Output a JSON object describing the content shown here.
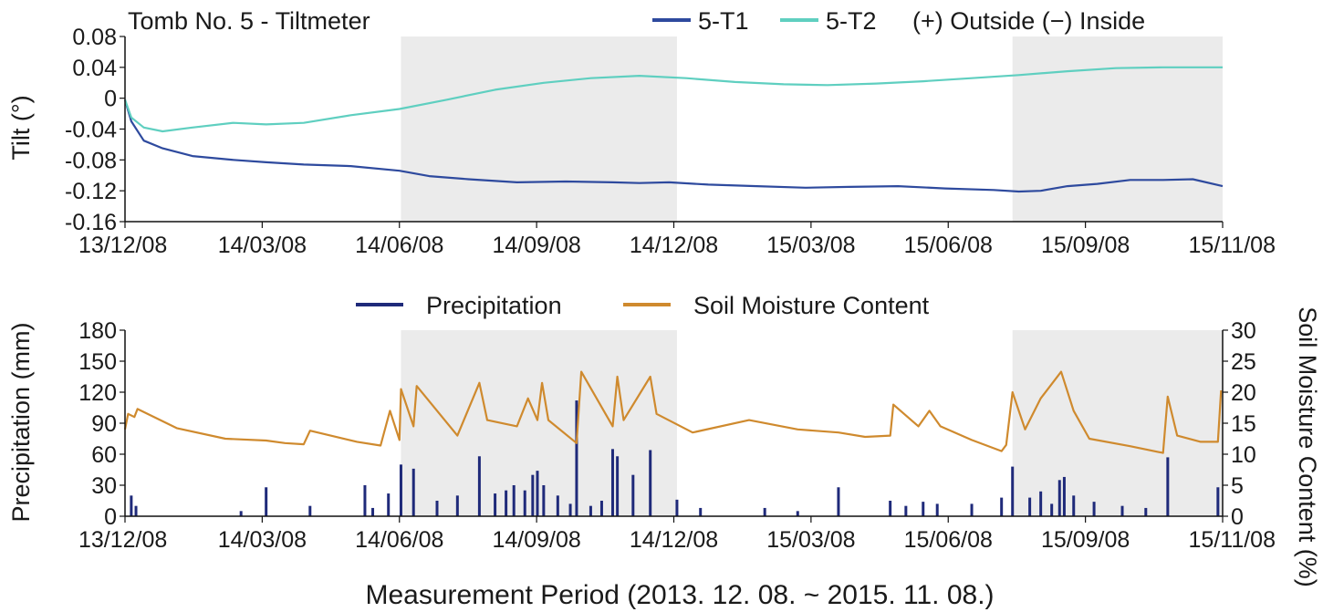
{
  "chart_data": [
    {
      "type": "line",
      "title": "Tomb  No.  5  -  Tiltmeter",
      "legend_note": "(+)  Outside  (−)  Inside",
      "ylabel": "Tilt (°)",
      "xlabel": "",
      "ylim": [
        -0.16,
        0.08
      ],
      "yticks": [
        "0.08",
        "0.04",
        "0",
        "-0.04",
        "-0.08",
        "-0.12",
        "-0.16"
      ],
      "xticks": [
        "13/12/08",
        "14/03/08",
        "14/06/08",
        "14/09/08",
        "14/12/08",
        "15/03/08",
        "15/06/08",
        "15/09/08",
        "15/11/08"
      ],
      "xrange": [
        "2013-12-08",
        "2015-11-08"
      ],
      "legend_placement": "top-right",
      "grid": false,
      "shaded_periods": [
        [
          "2014-06-02",
          "2014-11-25"
        ],
        [
          "2015-06-27",
          "2015-11-08"
        ]
      ],
      "series": [
        {
          "name": "5-T1",
          "color": "#2e4a9e",
          "points": [
            [
              "2013-12-08",
              -0.002
            ],
            [
              "2013-12-12",
              -0.03
            ],
            [
              "2013-12-20",
              -0.055
            ],
            [
              "2014-01-01",
              -0.065
            ],
            [
              "2014-01-20",
              -0.075
            ],
            [
              "2014-02-15",
              -0.08
            ],
            [
              "2014-03-08",
              -0.083
            ],
            [
              "2014-04-01",
              -0.086
            ],
            [
              "2014-05-01",
              -0.088
            ],
            [
              "2014-06-01",
              -0.094
            ],
            [
              "2014-06-20",
              -0.101
            ],
            [
              "2014-07-15",
              -0.105
            ],
            [
              "2014-08-15",
              -0.109
            ],
            [
              "2014-09-15",
              -0.108
            ],
            [
              "2014-10-15",
              -0.109
            ],
            [
              "2014-11-01",
              -0.11
            ],
            [
              "2014-11-20",
              -0.109
            ],
            [
              "2014-12-15",
              -0.112
            ],
            [
              "2015-01-15",
              -0.114
            ],
            [
              "2015-02-15",
              -0.116
            ],
            [
              "2015-03-15",
              -0.115
            ],
            [
              "2015-04-15",
              -0.114
            ],
            [
              "2015-05-15",
              -0.117
            ],
            [
              "2015-06-15",
              -0.119
            ],
            [
              "2015-07-01",
              -0.121
            ],
            [
              "2015-07-15",
              -0.12
            ],
            [
              "2015-08-01",
              -0.114
            ],
            [
              "2015-08-20",
              -0.111
            ],
            [
              "2015-09-10",
              -0.106
            ],
            [
              "2015-10-01",
              -0.106
            ],
            [
              "2015-10-20",
              -0.105
            ],
            [
              "2015-11-08",
              -0.114
            ]
          ]
        },
        {
          "name": "5-T2",
          "color": "#5fcfc0",
          "points": [
            [
              "2013-12-08",
              -0.002
            ],
            [
              "2013-12-12",
              -0.025
            ],
            [
              "2013-12-20",
              -0.038
            ],
            [
              "2014-01-01",
              -0.043
            ],
            [
              "2014-01-20",
              -0.038
            ],
            [
              "2014-02-15",
              -0.032
            ],
            [
              "2014-03-08",
              -0.034
            ],
            [
              "2014-04-01",
              -0.032
            ],
            [
              "2014-05-01",
              -0.022
            ],
            [
              "2014-06-01",
              -0.014
            ],
            [
              "2014-07-01",
              -0.002
            ],
            [
              "2014-08-01",
              0.011
            ],
            [
              "2014-09-01",
              0.02
            ],
            [
              "2014-10-01",
              0.026
            ],
            [
              "2014-11-01",
              0.029
            ],
            [
              "2014-12-01",
              0.026
            ],
            [
              "2015-01-01",
              0.021
            ],
            [
              "2015-02-01",
              0.018
            ],
            [
              "2015-03-01",
              0.017
            ],
            [
              "2015-04-01",
              0.019
            ],
            [
              "2015-05-01",
              0.022
            ],
            [
              "2015-06-01",
              0.026
            ],
            [
              "2015-07-01",
              0.03
            ],
            [
              "2015-08-01",
              0.035
            ],
            [
              "2015-09-01",
              0.039
            ],
            [
              "2015-10-01",
              0.04
            ],
            [
              "2015-11-08",
              0.04
            ]
          ]
        }
      ]
    },
    {
      "type": "bar+line",
      "title": "",
      "xlabel": "Measurement  Period (2013.  12.  08.  ~  2015.  11.  08.)",
      "ylabel": "Precipitation (mm)",
      "y2label": "Soil Moisture Content (%)",
      "ylim": [
        0,
        180
      ],
      "y2lim": [
        0,
        30
      ],
      "yticks": [
        "180",
        "150",
        "120",
        "90",
        "60",
        "30",
        "0"
      ],
      "y2ticks": [
        "30",
        "25",
        "20",
        "15",
        "10",
        "5",
        "0"
      ],
      "xticks": [
        "13/12/08",
        "14/03/08",
        "14/06/08",
        "14/09/08",
        "14/12/08",
        "15/03/08",
        "15/06/08",
        "15/09/08",
        "15/11/08"
      ],
      "xrange": [
        "2013-12-08",
        "2015-11-08"
      ],
      "legend_placement": "top-center",
      "grid": false,
      "shaded_periods": [
        [
          "2014-06-02",
          "2014-11-25"
        ],
        [
          "2015-06-27",
          "2015-11-08"
        ]
      ],
      "series": [
        {
          "name": "Precipitation",
          "color": "#1f2a7a",
          "kind": "bar",
          "axis": "left",
          "points": [
            [
              "2013-12-12",
              20
            ],
            [
              "2013-12-15",
              10
            ],
            [
              "2014-02-20",
              5
            ],
            [
              "2014-03-08",
              28
            ],
            [
              "2014-04-05",
              10
            ],
            [
              "2014-05-10",
              30
            ],
            [
              "2014-05-15",
              8
            ],
            [
              "2014-05-25",
              22
            ],
            [
              "2014-06-02",
              50
            ],
            [
              "2014-06-10",
              46
            ],
            [
              "2014-06-25",
              15
            ],
            [
              "2014-07-08",
              20
            ],
            [
              "2014-07-22",
              58
            ],
            [
              "2014-08-01",
              22
            ],
            [
              "2014-08-08",
              25
            ],
            [
              "2014-08-13",
              30
            ],
            [
              "2014-08-20",
              25
            ],
            [
              "2014-08-25",
              40
            ],
            [
              "2014-08-28",
              44
            ],
            [
              "2014-09-01",
              30
            ],
            [
              "2014-09-10",
              20
            ],
            [
              "2014-09-18",
              12
            ],
            [
              "2014-09-22",
              112
            ],
            [
              "2014-10-01",
              10
            ],
            [
              "2014-10-08",
              15
            ],
            [
              "2014-10-15",
              65
            ],
            [
              "2014-10-18",
              58
            ],
            [
              "2014-10-28",
              40
            ],
            [
              "2014-11-08",
              64
            ],
            [
              "2014-11-25",
              16
            ],
            [
              "2014-12-10",
              8
            ],
            [
              "2015-01-20",
              8
            ],
            [
              "2015-02-10",
              5
            ],
            [
              "2015-03-08",
              28
            ],
            [
              "2015-04-10",
              15
            ],
            [
              "2015-04-20",
              10
            ],
            [
              "2015-05-01",
              14
            ],
            [
              "2015-05-10",
              12
            ],
            [
              "2015-06-01",
              12
            ],
            [
              "2015-06-20",
              18
            ],
            [
              "2015-06-27",
              48
            ],
            [
              "2015-07-08",
              18
            ],
            [
              "2015-07-15",
              24
            ],
            [
              "2015-07-22",
              12
            ],
            [
              "2015-07-27",
              35
            ],
            [
              "2015-07-30",
              38
            ],
            [
              "2015-08-05",
              20
            ],
            [
              "2015-08-18",
              14
            ],
            [
              "2015-09-05",
              10
            ],
            [
              "2015-09-20",
              8
            ],
            [
              "2015-10-04",
              57
            ],
            [
              "2015-11-05",
              28
            ]
          ]
        },
        {
          "name": "Soil Moisture Content",
          "color": "#cf8a2e",
          "kind": "line",
          "axis": "right",
          "points": [
            [
              "2013-12-08",
              14
            ],
            [
              "2013-12-10",
              16.5
            ],
            [
              "2013-12-14",
              16
            ],
            [
              "2013-12-16",
              17.3
            ],
            [
              "2014-01-10",
              14.2
            ],
            [
              "2014-02-10",
              12.5
            ],
            [
              "2014-03-08",
              12.2
            ],
            [
              "2014-03-20",
              11.8
            ],
            [
              "2014-04-01",
              11.6
            ],
            [
              "2014-04-05",
              13.8
            ],
            [
              "2014-05-05",
              12
            ],
            [
              "2014-05-20",
              11.4
            ],
            [
              "2014-05-26",
              17
            ],
            [
              "2014-06-01",
              12.3
            ],
            [
              "2014-06-02",
              20.5
            ],
            [
              "2014-06-10",
              14.5
            ],
            [
              "2014-06-12",
              21
            ],
            [
              "2014-07-08",
              13
            ],
            [
              "2014-07-22",
              21.5
            ],
            [
              "2014-07-27",
              15.5
            ],
            [
              "2014-08-15",
              14.5
            ],
            [
              "2014-08-22",
              19
            ],
            [
              "2014-08-28",
              15.5
            ],
            [
              "2014-08-31",
              21.5
            ],
            [
              "2014-09-04",
              15.5
            ],
            [
              "2014-09-22",
              11.8
            ],
            [
              "2014-09-25",
              23.3
            ],
            [
              "2014-10-15",
              14.5
            ],
            [
              "2014-10-18",
              22.5
            ],
            [
              "2014-10-22",
              15.5
            ],
            [
              "2014-11-08",
              22.5
            ],
            [
              "2014-11-12",
              16.5
            ],
            [
              "2014-12-05",
              13.5
            ],
            [
              "2015-01-10",
              15.5
            ],
            [
              "2015-02-10",
              14
            ],
            [
              "2015-03-08",
              13.5
            ],
            [
              "2015-03-25",
              12.8
            ],
            [
              "2015-04-10",
              13
            ],
            [
              "2015-04-12",
              18
            ],
            [
              "2015-04-28",
              14.5
            ],
            [
              "2015-05-05",
              17
            ],
            [
              "2015-05-12",
              14.5
            ],
            [
              "2015-06-01",
              12.3
            ],
            [
              "2015-06-20",
              10.5
            ],
            [
              "2015-06-23",
              11.5
            ],
            [
              "2015-06-27",
              20
            ],
            [
              "2015-07-05",
              14
            ],
            [
              "2015-07-15",
              19
            ],
            [
              "2015-07-28",
              23.3
            ],
            [
              "2015-08-05",
              17
            ],
            [
              "2015-08-15",
              12.5
            ],
            [
              "2015-09-10",
              11.3
            ],
            [
              "2015-10-01",
              10.2
            ],
            [
              "2015-10-04",
              19.3
            ],
            [
              "2015-10-10",
              13
            ],
            [
              "2015-10-25",
              12
            ],
            [
              "2015-11-05",
              12
            ],
            [
              "2015-11-07",
              20.3
            ]
          ]
        }
      ]
    }
  ]
}
